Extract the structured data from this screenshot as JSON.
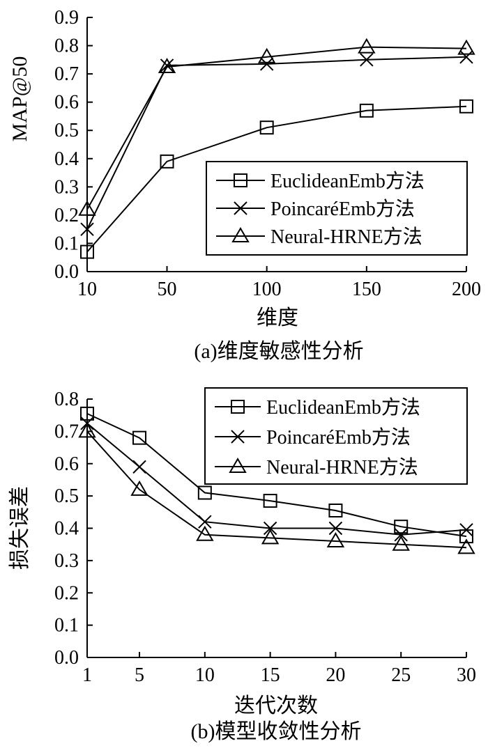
{
  "chart_data": [
    {
      "type": "line",
      "title": "",
      "caption": "(a)维度敏感性分析",
      "xlabel": "维度",
      "ylabel": "MAP@50",
      "x": [
        10,
        50,
        100,
        150,
        200
      ],
      "x_tick_labels": [
        "10",
        "50",
        "100",
        "150",
        "200"
      ],
      "y_tick_labels": [
        "0.0",
        "0.1",
        "0.2",
        "0.3",
        "0.4",
        "0.5",
        "0.6",
        "0.7",
        "0.8",
        "0.9"
      ],
      "ylim": [
        0,
        0.9
      ],
      "grid": false,
      "legend_position": "bottom-right",
      "series": [
        {
          "name": "EuclideanEmb方法",
          "marker": "square",
          "values": [
            0.07,
            0.39,
            0.51,
            0.57,
            0.585
          ]
        },
        {
          "name": "PoincaréEmb方法",
          "marker": "x",
          "values": [
            0.15,
            0.73,
            0.735,
            0.75,
            0.76
          ]
        },
        {
          "name": "Neural-HRNE方法",
          "marker": "triangle",
          "values": [
            0.22,
            0.725,
            0.76,
            0.795,
            0.79
          ]
        }
      ]
    },
    {
      "type": "line",
      "title": "",
      "caption": "(b)模型收敛性分析",
      "xlabel": "迭代次数",
      "ylabel": "损失误差",
      "x": [
        1,
        5,
        10,
        15,
        20,
        25,
        30
      ],
      "x_tick_labels": [
        "1",
        "5",
        "10",
        "15",
        "20",
        "25",
        "30"
      ],
      "y_tick_labels": [
        "0.0",
        "0.1",
        "0.2",
        "0.3",
        "0.4",
        "0.5",
        "0.6",
        "0.7",
        "0.8"
      ],
      "ylim": [
        0,
        0.8
      ],
      "grid": false,
      "legend_position": "top-right",
      "series": [
        {
          "name": "EuclideanEmb方法",
          "marker": "square",
          "values": [
            0.755,
            0.68,
            0.51,
            0.485,
            0.455,
            0.405,
            0.375
          ]
        },
        {
          "name": "PoincaréEmb方法",
          "marker": "x",
          "values": [
            0.725,
            0.59,
            0.42,
            0.4,
            0.4,
            0.38,
            0.395
          ]
        },
        {
          "name": "Neural-HRNE方法",
          "marker": "triangle",
          "values": [
            0.7,
            0.52,
            0.38,
            0.37,
            0.36,
            0.35,
            0.34
          ]
        }
      ]
    }
  ]
}
